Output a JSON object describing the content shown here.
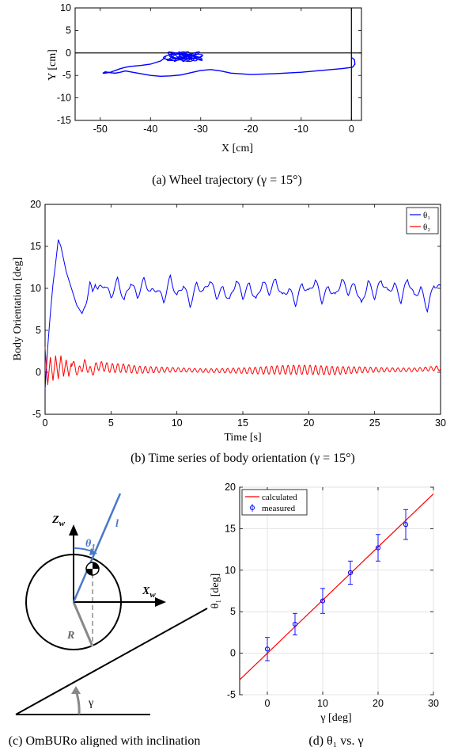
{
  "chart_data": [
    {
      "id": "a",
      "type": "line",
      "caption": "(a) Wheel trajectory (γ = 15°)",
      "xlabel": "X [cm]",
      "ylabel": "Y [cm]",
      "xlim": [
        -55,
        2
      ],
      "ylim": [
        -15,
        10
      ],
      "xticks": [
        -50,
        -40,
        -30,
        -20,
        -10,
        0
      ],
      "yticks": [
        -15,
        -10,
        -5,
        0,
        5,
        10
      ],
      "reference_lines": {
        "x": 0,
        "y": 0
      },
      "series": [
        {
          "color": "#0000ff",
          "x": [
            0.0,
            0.6,
            0.7,
            0.2,
            -2,
            -6,
            -10,
            -15,
            -20,
            -24,
            -26,
            -28,
            -30,
            -32,
            -34,
            -36,
            -38,
            -40,
            -42,
            -44,
            -45,
            -46,
            -47,
            -48,
            -49,
            -49.5,
            -49,
            -48,
            -47,
            -46,
            -45,
            -44,
            -42,
            -40,
            -38,
            -37
          ],
          "y": [
            -1.0,
            -1.5,
            -2.5,
            -3.2,
            -3.5,
            -3.9,
            -4.3,
            -4.6,
            -4.8,
            -4.5,
            -4.0,
            -3.7,
            -3.9,
            -4.4,
            -4.9,
            -5.1,
            -5.2,
            -5.0,
            -4.6,
            -4.2,
            -4.0,
            -4.3,
            -4.5,
            -4.4,
            -4.2,
            -4.5,
            -4.5,
            -4.3,
            -3.9,
            -3.5,
            -3.2,
            -3.0,
            -2.8,
            -2.5,
            -1.8,
            -1.0
          ]
        }
      ],
      "loop_cluster": {
        "cx": -33.5,
        "cy": -0.8,
        "rx": 3.5,
        "ry": 1.1
      }
    },
    {
      "id": "b",
      "type": "line",
      "caption": "(b) Time series of body orientation (γ = 15°)",
      "xlabel": "Time [s]",
      "ylabel": "Body Orientation [deg]",
      "xlim": [
        0,
        30
      ],
      "ylim": [
        -5,
        20
      ],
      "xticks": [
        0,
        5,
        10,
        15,
        20,
        25,
        30
      ],
      "yticks": [
        -5,
        0,
        5,
        10,
        15,
        20
      ],
      "legend": "top-right",
      "series": [
        {
          "name": "θ₁",
          "color": "#0000ff",
          "x": [
            0,
            0.2,
            0.4,
            0.6,
            0.8,
            1.0,
            1.2,
            1.4,
            1.6,
            1.8,
            2.0,
            2.2,
            2.4,
            2.6,
            2.8,
            3.0,
            3.2,
            3.4,
            3.6,
            3.8,
            4.0,
            4.5,
            5,
            5.5,
            6,
            6.5,
            7,
            7.5,
            8,
            8.5,
            9,
            9.5,
            10,
            10.5,
            11,
            11.5,
            12,
            12.5,
            13,
            13.5,
            14,
            14.5,
            15,
            15.5,
            16,
            16.5,
            17,
            17.5,
            18,
            18.5,
            19,
            19.5,
            20,
            20.5,
            21,
            21.5,
            22,
            22.5,
            23,
            23.5,
            24,
            24.5,
            25,
            25.5,
            26,
            26.5,
            27,
            27.5,
            28,
            28.5,
            29,
            29.5,
            30
          ],
          "values": [
            -2,
            3,
            7,
            10.5,
            13,
            15.8,
            15.0,
            13.5,
            12.0,
            11.0,
            10.0,
            9.0,
            8.0,
            7.5,
            7.0,
            7.8,
            9.0,
            10.5,
            9.5,
            10.8,
            9.8,
            10.5,
            9.0,
            11.0,
            8.5,
            10.8,
            9.0,
            11.0,
            9.5,
            10.0,
            8.5,
            11.3,
            9.0,
            10.5,
            8.0,
            10.5,
            9.5,
            11.0,
            9.0,
            10.0,
            8.5,
            11.0,
            9.0,
            10.5,
            8.5,
            10.8,
            9.5,
            11.0,
            9.0,
            10.0,
            8.2,
            10.5,
            9.5,
            11.0,
            8.5,
            10.2,
            9.0,
            11.0,
            9.5,
            10.5,
            8.0,
            10.8,
            9.0,
            11.0,
            9.5,
            10.5,
            8.5,
            11.2,
            9.0,
            10.0,
            7.5,
            10.5,
            10.0
          ]
        },
        {
          "name": "θ₂",
          "color": "#ff0000",
          "x": [
            0,
            0.2,
            0.4,
            0.6,
            0.8,
            1.0,
            1.2,
            1.4,
            1.6,
            1.8,
            2.0,
            2.5,
            3,
            3.5,
            4,
            5,
            6,
            7,
            8,
            9,
            10,
            12,
            14,
            16,
            18,
            20,
            22,
            24,
            26,
            28,
            30
          ],
          "values": [
            3,
            -1.5,
            1.8,
            -1.0,
            2.0,
            -0.8,
            2.0,
            -0.5,
            1.5,
            -0.5,
            1.2,
            0.0,
            1.0,
            0.0,
            0.8,
            0.5,
            0.5,
            0.3,
            0.3,
            0.3,
            0.3,
            0.2,
            0.2,
            0.2,
            0.3,
            0.3,
            0.2,
            0.3,
            0.3,
            0.3,
            0.5
          ],
          "oscillation_amplitude": 0.55
        }
      ]
    },
    {
      "id": "c",
      "type": "diagram",
      "caption": "(c) OmBURo aligned with inclination",
      "labels": {
        "z": "Z",
        "z_sub": "w",
        "x": "X",
        "x_sub": "w",
        "theta": "θ",
        "theta_sub": "1",
        "l": "l",
        "r": "R",
        "gamma": "γ"
      }
    },
    {
      "id": "d",
      "type": "scatter",
      "caption": "(d) θ₁ vs. γ",
      "xlabel": "γ [deg]",
      "ylabel": "θ₁ [deg]",
      "xlim": [
        -5,
        30
      ],
      "ylim": [
        -5,
        20
      ],
      "xticks": [
        0,
        10,
        20,
        30
      ],
      "yticks": [
        -5,
        0,
        5,
        10,
        15,
        20
      ],
      "grid": true,
      "legend": "top-left",
      "series": [
        {
          "name": "calculated",
          "color": "#ff0000",
          "kind": "line",
          "x": [
            -5,
            30
          ],
          "values": [
            -3.2,
            19.2
          ]
        },
        {
          "name": "measured",
          "color": "#0000ff",
          "kind": "errorbar",
          "x": [
            0,
            5,
            10,
            15,
            20,
            25
          ],
          "values": [
            0.5,
            3.5,
            6.3,
            9.7,
            12.7,
            15.5
          ],
          "err": [
            1.4,
            1.3,
            1.5,
            1.4,
            1.6,
            1.8
          ]
        }
      ]
    }
  ]
}
